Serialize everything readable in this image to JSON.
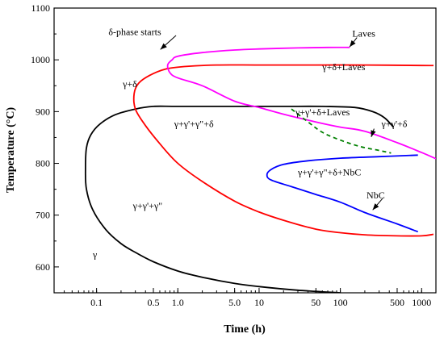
{
  "chart_data": {
    "type": "line",
    "title": "",
    "xlabel": "Time (h)",
    "ylabel": "Temperature (°C)",
    "xscale": "log",
    "xlim": [
      0.03,
      1500
    ],
    "ylim": [
      550,
      1100
    ],
    "x_ticks": [
      0.1,
      0.5,
      1.0,
      5.0,
      10,
      50,
      100,
      500,
      1000
    ],
    "x_tick_labels": [
      "0.1",
      "0.5",
      "1.0",
      "5.0",
      "10",
      "50",
      "100",
      "500",
      "1000"
    ],
    "y_ticks": [
      600,
      700,
      800,
      900,
      1000,
      1100
    ],
    "y_tick_labels": [
      "600",
      "700",
      "800",
      "900",
      "1000",
      "1100"
    ],
    "grid": false,
    "legend": "none",
    "series": [
      {
        "color": "#000000",
        "style": "solid",
        "points": [
          [
            100,
            550
          ],
          [
            30,
            555
          ],
          [
            10,
            562
          ],
          [
            5,
            568
          ],
          [
            2,
            580
          ],
          [
            1,
            592
          ],
          [
            0.5,
            610
          ],
          [
            0.3,
            628
          ],
          [
            0.2,
            645
          ],
          [
            0.13,
            672
          ],
          [
            0.09,
            710
          ],
          [
            0.075,
            750
          ],
          [
            0.073,
            790
          ],
          [
            0.075,
            830
          ],
          [
            0.085,
            855
          ],
          [
            0.11,
            876
          ],
          [
            0.17,
            894
          ],
          [
            0.3,
            905
          ],
          [
            0.5,
            910
          ],
          [
            1,
            910
          ],
          [
            5,
            910
          ],
          [
            20,
            910
          ],
          [
            60,
            910
          ],
          [
            150,
            908
          ],
          [
            250,
            900
          ],
          [
            350,
            888
          ],
          [
            450,
            870
          ]
        ]
      },
      {
        "color": "#ff0000",
        "style": "solid",
        "points": [
          [
            1400,
            663
          ],
          [
            1000,
            660
          ],
          [
            500,
            660
          ],
          [
            200,
            662
          ],
          [
            100,
            666
          ],
          [
            50,
            673
          ],
          [
            20,
            690
          ],
          [
            10,
            706
          ],
          [
            5,
            727
          ],
          [
            2,
            765
          ],
          [
            1,
            800
          ],
          [
            0.6,
            838
          ],
          [
            0.4,
            873
          ],
          [
            0.3,
            905
          ],
          [
            0.29,
            935
          ],
          [
            0.33,
            955
          ],
          [
            0.45,
            970
          ],
          [
            0.7,
            982
          ],
          [
            1.2,
            987
          ],
          [
            3,
            990
          ],
          [
            10,
            990
          ],
          [
            50,
            990
          ],
          [
            200,
            990
          ],
          [
            1000,
            989
          ],
          [
            1400,
            989
          ]
        ]
      },
      {
        "color": "#ff00ff",
        "style": "solid",
        "points": [
          [
            1500,
            809
          ],
          [
            1000,
            821
          ],
          [
            500,
            840
          ],
          [
            200,
            862
          ],
          [
            100,
            870
          ],
          [
            50,
            880
          ],
          [
            20,
            895
          ],
          [
            10,
            908
          ],
          [
            5,
            920
          ],
          [
            2,
            950
          ],
          [
            1,
            965
          ],
          [
            0.8,
            975
          ],
          [
            0.75,
            990
          ],
          [
            0.85,
            1000
          ],
          [
            1,
            1007
          ],
          [
            2,
            1014
          ],
          [
            5,
            1019
          ],
          [
            10,
            1021
          ],
          [
            30,
            1023
          ],
          [
            70,
            1024
          ],
          [
            130,
            1024
          ]
        ]
      },
      {
        "color": "#0000ff",
        "style": "solid",
        "points": [
          [
            900,
            668
          ],
          [
            500,
            683
          ],
          [
            200,
            705
          ],
          [
            100,
            725
          ],
          [
            50,
            740
          ],
          [
            25,
            755
          ],
          [
            14,
            768
          ],
          [
            12.5,
            778
          ],
          [
            14,
            788
          ],
          [
            20,
            798
          ],
          [
            40,
            805
          ],
          [
            100,
            810
          ],
          [
            300,
            813
          ],
          [
            900,
            816
          ]
        ]
      },
      {
        "color": "#008000",
        "style": "dashed",
        "points": [
          [
            25,
            905
          ],
          [
            40,
            880
          ],
          [
            60,
            860
          ],
          [
            100,
            845
          ],
          [
            180,
            832
          ],
          [
            300,
            825
          ],
          [
            420,
            820
          ]
        ]
      }
    ],
    "annotations": [
      {
        "text": "δ-phase starts",
        "x": 0.14,
        "y": 1048
      },
      {
        "text": "Laves",
        "x": 140,
        "y": 1045
      },
      {
        "text": "γ+δ+Laves",
        "x": 60,
        "y": 980
      },
      {
        "text": "γ+δ",
        "x": 0.21,
        "y": 947
      },
      {
        "text": "γ+γ'+δ+Laves",
        "x": 28,
        "y": 893
      },
      {
        "text": "γ+γ'+γ\"+δ",
        "x": 0.9,
        "y": 870
      },
      {
        "text": "γ+γ'+δ",
        "x": 320,
        "y": 870
      },
      {
        "text": "γ+γ'+γ\"+δ+NbC",
        "x": 30,
        "y": 777
      },
      {
        "text": "γ+γ'+γ\"",
        "x": 0.28,
        "y": 712
      },
      {
        "text": "NbC",
        "x": 210,
        "y": 732
      },
      {
        "text": "γ",
        "x": 0.09,
        "y": 618
      }
    ],
    "arrows": [
      {
        "from": [
          0.95,
          1047
        ],
        "to": [
          0.61,
          1020
        ]
      },
      {
        "from": [
          160,
          1043
        ],
        "to": [
          130,
          1025
        ]
      },
      {
        "from": [
          260,
          867
        ],
        "to": [
          240,
          851
        ]
      },
      {
        "from": [
          330,
          732
        ],
        "to": [
          250,
          710
        ]
      }
    ]
  }
}
